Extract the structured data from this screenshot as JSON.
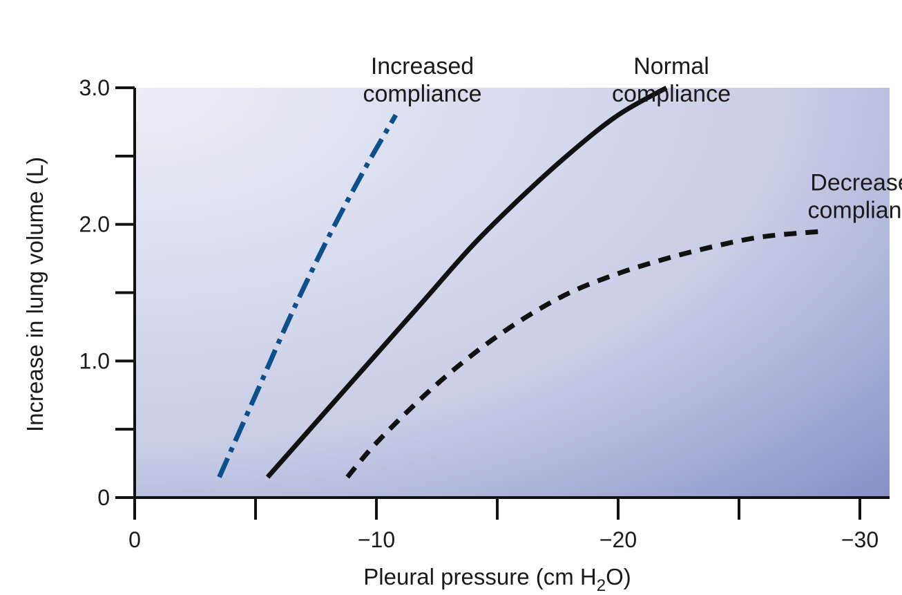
{
  "chart_data": {
    "type": "line",
    "title": "",
    "xlabel": "Pleural pressure (cm H",
    "xlabel_sub": "2",
    "xlabel_suffix": "O)",
    "ylabel": "Increase in lung volume (L)",
    "xlim": [
      0,
      -31
    ],
    "ylim": [
      0,
      3.0
    ],
    "x_major_ticks": [
      0,
      -10,
      -20,
      -30
    ],
    "x_major_labels": [
      "0",
      "−10",
      "−20",
      "−30"
    ],
    "x_minor_ticks": [
      -5,
      -15,
      -25
    ],
    "y_major_ticks": [
      0,
      1.0,
      2.0,
      3.0
    ],
    "y_major_labels": [
      "0",
      "1.0",
      "2.0",
      "3.0"
    ],
    "y_minor_ticks": [
      0.5,
      1.5,
      2.5
    ],
    "grid": false,
    "legend": "none",
    "series": [
      {
        "name": "Increased compliance",
        "label_lines": [
          "Increased",
          "compliance"
        ],
        "color": "#0d4f8b",
        "style": "dash-dot",
        "label_at": {
          "x": -11.9,
          "y": 3.1
        },
        "x": [
          -3.5,
          -5.0,
          -6.5,
          -8.0,
          -9.5,
          -10.8
        ],
        "y": [
          0.15,
          0.75,
          1.35,
          1.9,
          2.4,
          2.8
        ]
      },
      {
        "name": "Normal compliance",
        "label_lines": [
          "Normal",
          "compliance"
        ],
        "color": "#111111",
        "style": "solid",
        "label_at": {
          "x": -22.2,
          "y": 3.1
        },
        "x": [
          -5.5,
          -8.0,
          -10.0,
          -12.0,
          -14.0,
          -16.0,
          -18.0,
          -20.0,
          -22.0
        ],
        "y": [
          0.15,
          0.65,
          1.05,
          1.45,
          1.85,
          2.2,
          2.52,
          2.8,
          3.0
        ]
      },
      {
        "name": "Decreased compliance",
        "label_lines": [
          "Decreased",
          "compliance"
        ],
        "color": "#111111",
        "style": "dashed",
        "label_at": {
          "x": -30.3,
          "y": 2.25
        },
        "x": [
          -8.8,
          -10.0,
          -12.0,
          -14.0,
          -16.0,
          -18.0,
          -20.0,
          -22.0,
          -24.0,
          -26.0,
          -28.5
        ],
        "y": [
          0.15,
          0.4,
          0.75,
          1.05,
          1.3,
          1.5,
          1.64,
          1.75,
          1.84,
          1.91,
          1.95
        ]
      }
    ]
  },
  "colors": {
    "plot_bg_light": "#eceef7",
    "plot_bg_mid": "#c8cde6",
    "plot_bg_dark": "#6e7cbc"
  }
}
